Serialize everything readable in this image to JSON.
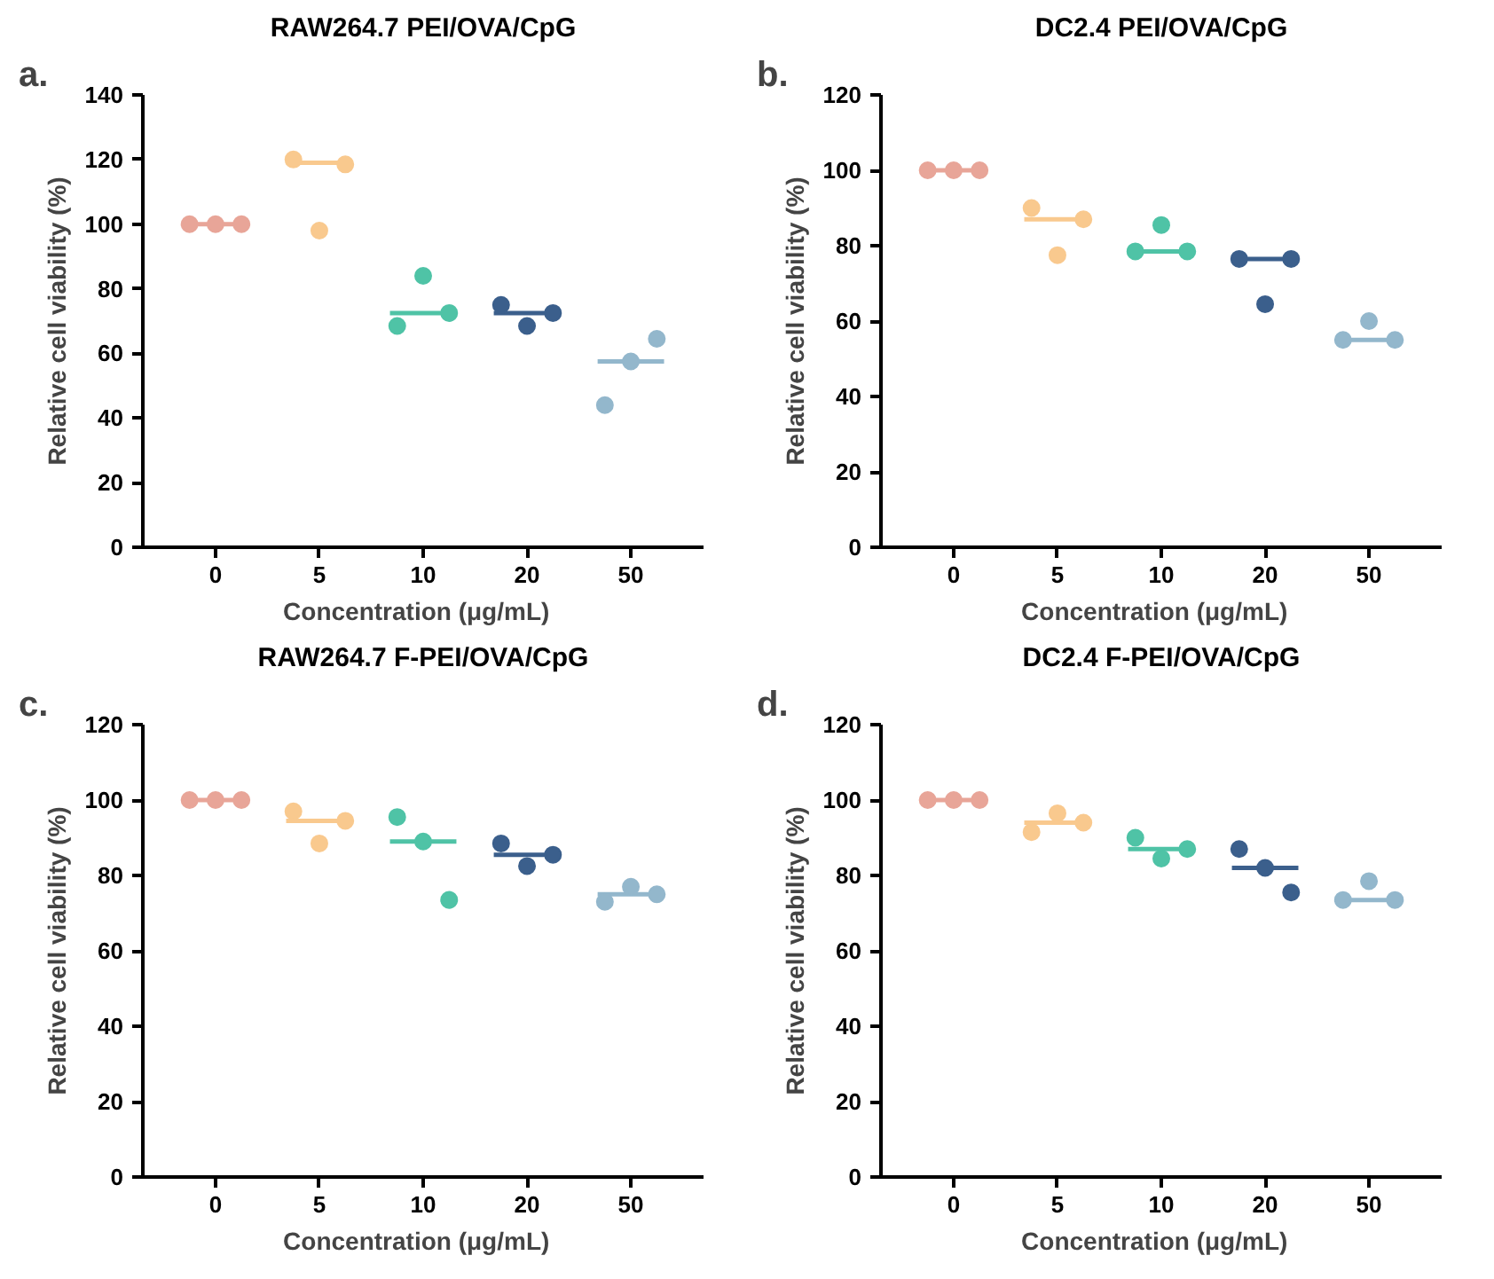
{
  "chart_data": [
    {
      "type": "box",
      "title": "RAW264.7 PEI/OVA/CpG",
      "annotations": [
        "a."
      ],
      "xlabel": "Concentration   (μg/mL)",
      "ylabel": "Relative cell viability (%)",
      "categories": [
        "0",
        "5",
        "10",
        "20",
        "50"
      ],
      "ylim": [
        0,
        140
      ],
      "yticks": [
        0,
        20,
        40,
        60,
        80,
        100,
        120,
        140
      ],
      "grid": false,
      "marker": "circle",
      "colors": [
        "#e8a598",
        "#f9c98e",
        "#4fc3a6",
        "#3b5f8c",
        "#93b7cc"
      ],
      "boxes": [
        {
          "low": 100,
          "q1": 100,
          "median": 100,
          "q3": 100,
          "high": 100
        },
        {
          "low": 119,
          "q1": 119,
          "median": 119,
          "q3": 119,
          "high": 119
        },
        {
          "low": 72.5,
          "q1": 72.5,
          "median": 72.5,
          "q3": 72.5,
          "high": 72.5
        },
        {
          "low": 72.5,
          "q1": 72.5,
          "median": 72.5,
          "q3": 72.5,
          "high": 72.5
        },
        {
          "low": 57.5,
          "q1": 57.5,
          "median": 57.5,
          "q3": 57.5,
          "high": 57.5
        }
      ],
      "series": [
        {
          "type": "scatter",
          "color": "#e8a598",
          "x": [
            "0",
            "0",
            "0"
          ],
          "values": [
            100,
            100,
            100
          ]
        },
        {
          "type": "scatter",
          "color": "#f9c98e",
          "x": [
            "5",
            "5",
            "5"
          ],
          "values": [
            120,
            98,
            118.5
          ]
        },
        {
          "type": "scatter",
          "color": "#4fc3a6",
          "x": [
            "10",
            "10",
            "10"
          ],
          "values": [
            68.5,
            84,
            72.5
          ]
        },
        {
          "type": "scatter",
          "color": "#3b5f8c",
          "x": [
            "20",
            "20",
            "20"
          ],
          "values": [
            75,
            68.5,
            72.5
          ]
        },
        {
          "type": "scatter",
          "color": "#93b7cc",
          "x": [
            "50",
            "50",
            "50"
          ],
          "values": [
            44,
            57.5,
            64.5
          ]
        }
      ]
    },
    {
      "type": "box",
      "title": "DC2.4 PEI/OVA/CpG",
      "annotations": [
        "b."
      ],
      "xlabel": "Concentration   (μg/mL)",
      "ylabel": "Relative cell viability (%)",
      "categories": [
        "0",
        "5",
        "10",
        "20",
        "50"
      ],
      "ylim": [
        0,
        120
      ],
      "yticks": [
        0,
        20,
        40,
        60,
        80,
        100,
        120
      ],
      "grid": false,
      "marker": "circle",
      "colors": [
        "#e8a598",
        "#f9c98e",
        "#4fc3a6",
        "#3b5f8c",
        "#93b7cc"
      ],
      "boxes": [
        {
          "low": 100,
          "q1": 100,
          "median": 100,
          "q3": 100,
          "high": 100
        },
        {
          "low": 87,
          "q1": 87,
          "median": 87,
          "q3": 87,
          "high": 87
        },
        {
          "low": 78.5,
          "q1": 78.5,
          "median": 78.5,
          "q3": 78.5,
          "high": 78.5
        },
        {
          "low": 76.5,
          "q1": 76.5,
          "median": 76.5,
          "q3": 76.5,
          "high": 76.5
        },
        {
          "low": 55,
          "q1": 55,
          "median": 55,
          "q3": 55,
          "high": 55
        }
      ],
      "series": [
        {
          "type": "scatter",
          "color": "#e8a598",
          "x": [
            "0",
            "0",
            "0"
          ],
          "values": [
            100,
            100,
            100
          ]
        },
        {
          "type": "scatter",
          "color": "#f9c98e",
          "x": [
            "5",
            "5",
            "5"
          ],
          "values": [
            90,
            77.5,
            87
          ]
        },
        {
          "type": "scatter",
          "color": "#4fc3a6",
          "x": [
            "10",
            "10",
            "10"
          ],
          "values": [
            78.5,
            85.5,
            78.5
          ]
        },
        {
          "type": "scatter",
          "color": "#3b5f8c",
          "x": [
            "20",
            "20",
            "20"
          ],
          "values": [
            76.5,
            64.5,
            76.5
          ]
        },
        {
          "type": "scatter",
          "color": "#93b7cc",
          "x": [
            "50",
            "50",
            "50"
          ],
          "values": [
            55,
            60,
            55
          ]
        }
      ]
    },
    {
      "type": "box",
      "title": "RAW264.7 F-PEI/OVA/CpG",
      "annotations": [
        "c."
      ],
      "xlabel": "Concentration   (μg/mL)",
      "ylabel": "Relative cell viability (%)",
      "categories": [
        "0",
        "5",
        "10",
        "20",
        "50"
      ],
      "ylim": [
        0,
        120
      ],
      "yticks": [
        0,
        20,
        40,
        60,
        80,
        100,
        120
      ],
      "grid": false,
      "marker": "circle",
      "colors": [
        "#e8a598",
        "#f9c98e",
        "#4fc3a6",
        "#3b5f8c",
        "#93b7cc"
      ],
      "boxes": [
        {
          "low": 100,
          "q1": 100,
          "median": 100,
          "q3": 100,
          "high": 100
        },
        {
          "low": 94.5,
          "q1": 94.5,
          "median": 94.5,
          "q3": 94.5,
          "high": 94.5
        },
        {
          "low": 89,
          "q1": 89,
          "median": 89,
          "q3": 89,
          "high": 89
        },
        {
          "low": 85.5,
          "q1": 85.5,
          "median": 85.5,
          "q3": 85.5,
          "high": 85.5
        },
        {
          "low": 75,
          "q1": 75,
          "median": 75,
          "q3": 75,
          "high": 75
        }
      ],
      "series": [
        {
          "type": "scatter",
          "color": "#e8a598",
          "x": [
            "0",
            "0",
            "0"
          ],
          "values": [
            100,
            100,
            100
          ]
        },
        {
          "type": "scatter",
          "color": "#f9c98e",
          "x": [
            "5",
            "5",
            "5"
          ],
          "values": [
            97,
            88.5,
            94.5
          ]
        },
        {
          "type": "scatter",
          "color": "#4fc3a6",
          "x": [
            "10",
            "10",
            "10"
          ],
          "values": [
            95.5,
            89,
            73.5
          ]
        },
        {
          "type": "scatter",
          "color": "#3b5f8c",
          "x": [
            "20",
            "20",
            "20"
          ],
          "values": [
            88.5,
            82.5,
            85.5
          ]
        },
        {
          "type": "scatter",
          "color": "#93b7cc",
          "x": [
            "50",
            "50",
            "50"
          ],
          "values": [
            73,
            77,
            75
          ]
        }
      ]
    },
    {
      "type": "box",
      "title": "DC2.4 F-PEI/OVA/CpG",
      "annotations": [
        "d."
      ],
      "xlabel": "Concentration   (μg/mL)",
      "ylabel": "Relative cell viability (%)",
      "categories": [
        "0",
        "5",
        "10",
        "20",
        "50"
      ],
      "ylim": [
        0,
        120
      ],
      "yticks": [
        0,
        20,
        40,
        60,
        80,
        100,
        120
      ],
      "grid": false,
      "marker": "circle",
      "colors": [
        "#e8a598",
        "#f9c98e",
        "#4fc3a6",
        "#3b5f8c",
        "#93b7cc"
      ],
      "boxes": [
        {
          "low": 100,
          "q1": 100,
          "median": 100,
          "q3": 100,
          "high": 100
        },
        {
          "low": 94,
          "q1": 94,
          "median": 94,
          "q3": 94,
          "high": 94
        },
        {
          "low": 87,
          "q1": 87,
          "median": 87,
          "q3": 87,
          "high": 87
        },
        {
          "low": 82,
          "q1": 82,
          "median": 82,
          "q3": 82,
          "high": 82
        },
        {
          "low": 73.5,
          "q1": 73.5,
          "median": 73.5,
          "q3": 73.5,
          "high": 73.5
        }
      ],
      "series": [
        {
          "type": "scatter",
          "color": "#e8a598",
          "x": [
            "0",
            "0",
            "0"
          ],
          "values": [
            100,
            100,
            100
          ]
        },
        {
          "type": "scatter",
          "color": "#f9c98e",
          "x": [
            "5",
            "5",
            "5"
          ],
          "values": [
            91.5,
            96.5,
            94
          ]
        },
        {
          "type": "scatter",
          "color": "#4fc3a6",
          "x": [
            "10",
            "10",
            "10"
          ],
          "values": [
            90,
            84.5,
            87
          ]
        },
        {
          "type": "scatter",
          "color": "#3b5f8c",
          "x": [
            "20",
            "20",
            "20"
          ],
          "values": [
            87,
            82,
            75.5
          ]
        },
        {
          "type": "scatter",
          "color": "#93b7cc",
          "x": [
            "50",
            "50",
            "50"
          ],
          "values": [
            73.5,
            78.5,
            73.5
          ]
        }
      ]
    }
  ]
}
